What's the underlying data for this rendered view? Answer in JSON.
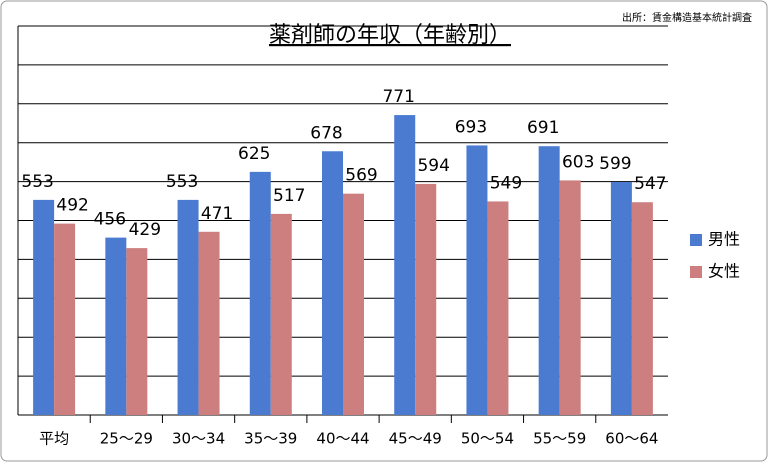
{
  "chart_data": {
    "type": "bar",
    "title": "薬剤師の年収（年齢別）",
    "source": "出所：賃金構造基本統計調査",
    "categories": [
      "平均",
      "25〜29",
      "30〜34",
      "35〜39",
      "40〜44",
      "45〜49",
      "50〜54",
      "55〜59",
      "60〜64"
    ],
    "series": [
      {
        "name": "男性",
        "color": "#4a7bd0",
        "values": [
          553,
          456,
          553,
          625,
          678,
          771,
          693,
          691,
          599
        ]
      },
      {
        "name": "女性",
        "color": "#cd7f7f",
        "values": [
          492,
          429,
          471,
          517,
          569,
          594,
          549,
          603,
          547
        ]
      }
    ],
    "ylim": [
      0,
      1000
    ],
    "yticks": [
      0,
      100,
      200,
      300,
      400,
      500,
      600,
      700,
      800,
      900,
      1000
    ],
    "grid": true,
    "legend": "right"
  }
}
